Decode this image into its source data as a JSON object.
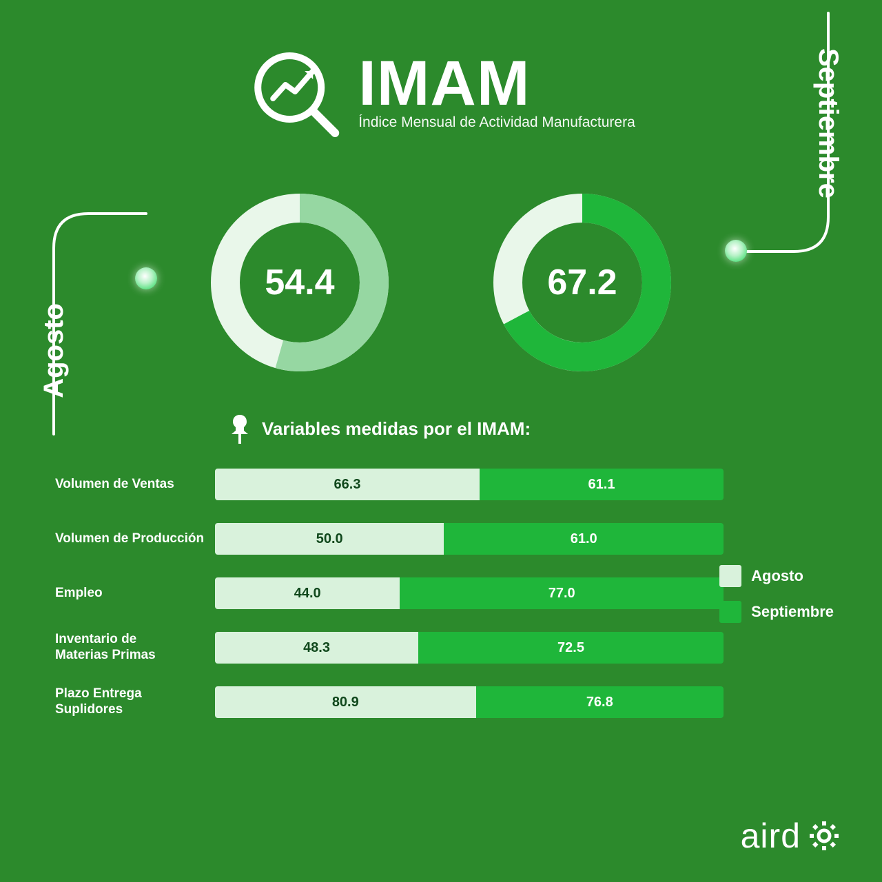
{
  "colors": {
    "bg": "#2c8a2c",
    "white": "#ffffff",
    "donut_empty": "#e9f7ea",
    "donut_a_fill": "#96d7a2",
    "donut_b_fill": "#1fb63a",
    "bar_a_bg": "#d9f2dc",
    "bar_a_text": "#10481c",
    "bar_b_bg": "#1fb63a",
    "bar_b_text": "#ffffff"
  },
  "header": {
    "title": "IMAM",
    "subtitle": "Índice Mensual de Actividad Manufacturera"
  },
  "side_labels": {
    "left": "Agosto",
    "right": "Septiembre"
  },
  "donuts": {
    "thickness": 42,
    "radius": 108,
    "a": {
      "value": "54.4",
      "pct": 54.4,
      "fill": "#96d7a2",
      "empty": "#e9f7ea"
    },
    "b": {
      "value": "67.2",
      "pct": 67.2,
      "fill": "#1fb63a",
      "empty": "#e9f7ea"
    }
  },
  "vars_title": "Variables medidas por el IMAM:",
  "legend": {
    "a_label": "Agosto",
    "b_label": "Septiembre",
    "a_color": "#d9f2dc",
    "b_color": "#1fb63a"
  },
  "bars": [
    {
      "label": "Volumen de Ventas",
      "a": 66.3,
      "b": 61.1
    },
    {
      "label": "Volumen de Producción",
      "a": 50.0,
      "b": 61.0
    },
    {
      "label": "Empleo",
      "a": 44.0,
      "b": 77.0
    },
    {
      "label": "Inventario de\nMaterias Primas",
      "a": 48.3,
      "b": 72.5
    },
    {
      "label": "Plazo Entrega\nSuplidores",
      "a": 80.9,
      "b": 76.8
    }
  ],
  "logo_text": "aird"
}
